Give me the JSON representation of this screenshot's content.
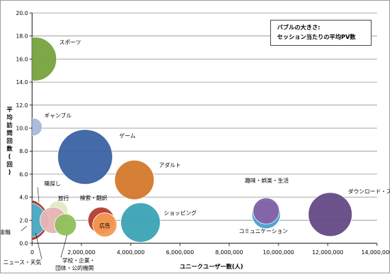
{
  "chart_data": {
    "type": "bubble",
    "title": "",
    "xlabel": "ユニークユーザー数(人)",
    "ylabel": "平均訪問回数(回)",
    "xlim": [
      0,
      14000000
    ],
    "ylim": [
      0,
      20
    ],
    "x_ticks": [
      "0",
      "2,000,000",
      "4,000,000",
      "6,000,000",
      "8,000,000",
      "10,000,000",
      "12,000,000",
      "14,000,000"
    ],
    "y_ticks": [
      "0.0",
      "2.0",
      "4.0",
      "6.0",
      "8.0",
      "10.0",
      "12.0",
      "14.0",
      "16.0",
      "18.0",
      "20.0"
    ],
    "size_note": [
      "バブルの大きさ:",
      "セッション当たりの平均PV数"
    ],
    "grid": "horizontal",
    "points": [
      {
        "name": "スポーツ",
        "x": 100000,
        "y": 16.0,
        "size": 10.0,
        "color": "#77a23e"
      },
      {
        "name": "ギャンブル",
        "x": 50000,
        "y": 10.1,
        "size": 4.0,
        "color": "#a6b9db"
      },
      {
        "name": "ゲーム",
        "x": 2150000,
        "y": 7.5,
        "size": 12.5,
        "color": "#3a62a3"
      },
      {
        "name": "アダルト",
        "x": 4150000,
        "y": 5.5,
        "size": 9.0,
        "color": "#d3792b"
      },
      {
        "name": "職探し",
        "x": -200000,
        "y": 2.0,
        "size": 9.5,
        "color": "#a83232"
      },
      {
        "name": "金融",
        "x": -150000,
        "y": 2.0,
        "size": 8.0,
        "color": "#4bb1cc"
      },
      {
        "name": "旅行",
        "x": 1050000,
        "y": 2.8,
        "size": 4.5,
        "color": "#dfe9c1"
      },
      {
        "name": "ニュース・天気",
        "x": 850000,
        "y": 2.0,
        "size": 6.0,
        "color": "#e6b5b5"
      },
      {
        "name": "学校・企業・団体・公的機関",
        "x": 1350000,
        "y": 1.6,
        "size": 5.0,
        "color": "#90c05a"
      },
      {
        "name": "検索・翻訳",
        "x": 2800000,
        "y": 2.0,
        "size": 6.0,
        "color": "#b63c30"
      },
      {
        "name": "広告",
        "x": 2950000,
        "y": 1.6,
        "size": 5.5,
        "color": "#f29a50"
      },
      {
        "name": "ショッピング",
        "x": 4400000,
        "y": 1.8,
        "size": 9.0,
        "color": "#3aa3b5"
      },
      {
        "name": "コミュニケーション",
        "x": 9500000,
        "y": 2.5,
        "size": 6.5,
        "color": "#4a9fcf"
      },
      {
        "name": "趣味・娯楽・生活",
        "x": 9500000,
        "y": 2.8,
        "size": 6.0,
        "color": "#8563a7"
      },
      {
        "name": "ダウンロード・ストレージ",
        "x": 12100000,
        "y": 2.5,
        "size": 10.0,
        "color": "#644a86"
      }
    ]
  }
}
